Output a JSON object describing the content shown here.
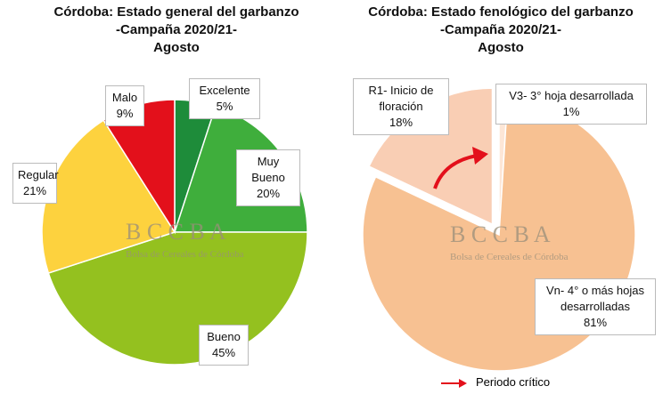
{
  "chart_data": [
    {
      "type": "pie",
      "title": [
        "Córdoba: Estado general del garbanzo",
        "-Campaña 2020/21-",
        "Agosto"
      ],
      "categories": [
        "Excelente",
        "Muy Bueno",
        "Bueno",
        "Regular",
        "Malo"
      ],
      "values": [
        5,
        20,
        45,
        21,
        9
      ],
      "value_labels": [
        "5%",
        "20%",
        "45%",
        "21%",
        "9%"
      ],
      "colors": [
        "#1e8c3a",
        "#3fae3c",
        "#94c11f",
        "#fdd23e",
        "#e3101b"
      ]
    },
    {
      "type": "pie",
      "title": [
        "Córdoba: Estado fenológico del garbanzo",
        "-Campaña 2020/21-",
        "Agosto"
      ],
      "categories": [
        "V3- 3° hoja desarrollada",
        "Vn- 4° o más hojas desarrolladas",
        "R1- Inicio de floración"
      ],
      "values": [
        1,
        81,
        18
      ],
      "value_labels": [
        "1%",
        "81%",
        "18%"
      ],
      "colors": [
        "#fde6d6",
        "#f7c192",
        "#f9ceb4"
      ],
      "annotation": "Periodo crítico"
    }
  ],
  "watermark": {
    "name": "B C C B A",
    "subtitle": "Bolsa de Cereales de Córdoba"
  }
}
